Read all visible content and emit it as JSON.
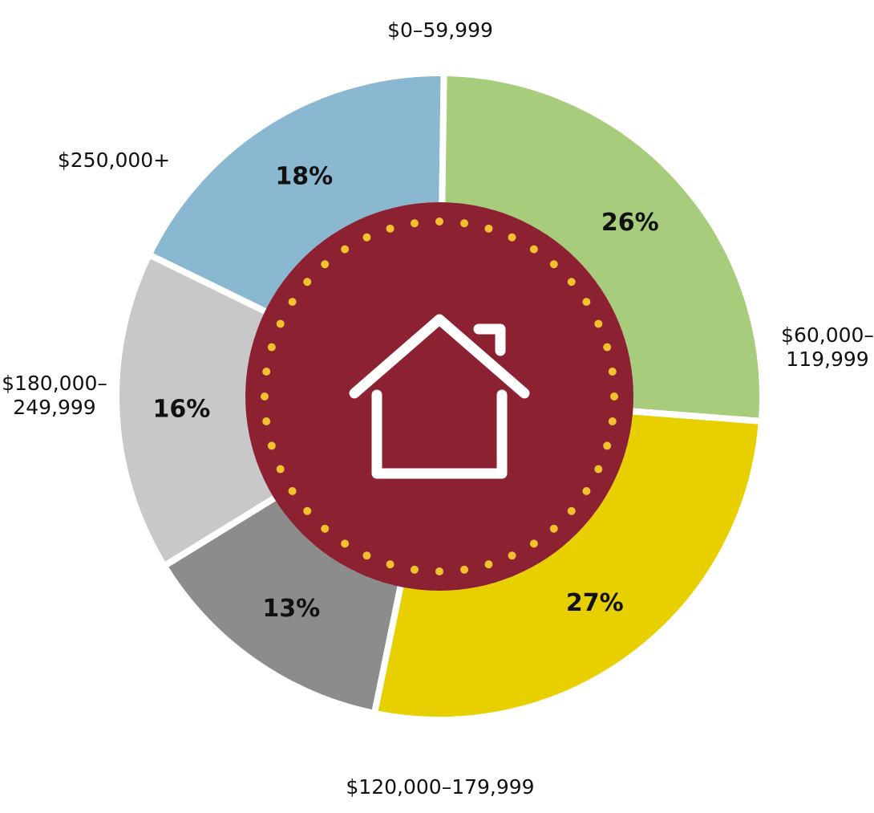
{
  "chart_data": {
    "type": "pie",
    "style": "donut",
    "slices": [
      {
        "label": "$0–59,999",
        "label_lines": [
          "$0–59,999"
        ],
        "value": 18,
        "value_label": "18%",
        "color": "#8BB8D1"
      },
      {
        "label": "$60,000–119,999",
        "label_lines": [
          "$60,000–",
          "119,999"
        ],
        "value": 26,
        "value_label": "26%",
        "color": "#A7CC7B"
      },
      {
        "label": "$120,000–179,999",
        "label_lines": [
          "$120,000–179,999"
        ],
        "value": 27,
        "value_label": "27%",
        "color": "#E8CF00"
      },
      {
        "label": "$180,000–249,999",
        "label_lines": [
          "$180,000–",
          "249,999"
        ],
        "value": 13,
        "value_label": "13%",
        "color": "#8C8C8C"
      },
      {
        "label": "$250,000+",
        "label_lines": [
          "$250,000+"
        ],
        "value": 16,
        "value_label": "16%",
        "color": "#C8C8C8"
      }
    ],
    "center": {
      "icon": "house-icon",
      "fill_color": "#8B2131",
      "dot_color": "#F2C12E",
      "icon_color": "#FFFFFF"
    }
  }
}
